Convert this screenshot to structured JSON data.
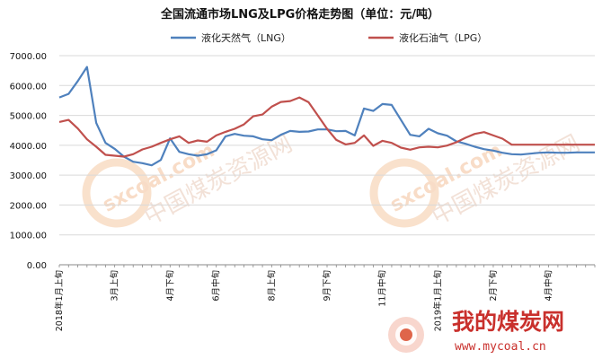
{
  "chart_data": {
    "type": "line",
    "title": "全国流通市场LNG及LPG价格走势图（单位：元/吨）",
    "ylim": [
      0,
      7000
    ],
    "yticks": [
      "0.00",
      "1000.00",
      "2000.00",
      "3000.00",
      "4000.00",
      "5000.00",
      "6000.00",
      "7000.00"
    ],
    "grid": "horizontal",
    "legend_position": "top",
    "x_tick_labels": [
      {
        "index": 0,
        "label": "2018年1月上旬"
      },
      {
        "index": 6,
        "label": "3月上旬"
      },
      {
        "index": 12,
        "label": "4月下旬"
      },
      {
        "index": 17,
        "label": "6月中旬"
      },
      {
        "index": 23,
        "label": "8月上旬"
      },
      {
        "index": 29,
        "label": "9月下旬"
      },
      {
        "index": 35,
        "label": "11月中旬"
      },
      {
        "index": 41,
        "label": "2019年1月上旬"
      },
      {
        "index": 47,
        "label": "2月下旬"
      },
      {
        "index": 53,
        "label": "4月中旬"
      }
    ],
    "n_points": 59,
    "series": [
      {
        "name": "液化天然气（LNG）",
        "color": "#4F81BD",
        "values": [
          5600,
          5720,
          6150,
          6620,
          4750,
          4080,
          3880,
          3620,
          3450,
          3400,
          3330,
          3510,
          4230,
          3780,
          3700,
          3650,
          3700,
          3830,
          4300,
          4380,
          4320,
          4300,
          4200,
          4170,
          4350,
          4480,
          4450,
          4460,
          4530,
          4530,
          4470,
          4480,
          4330,
          5230,
          5150,
          5380,
          5350,
          4850,
          4350,
          4300,
          4550,
          4400,
          4320,
          4130,
          4050,
          3950,
          3870,
          3820,
          3750,
          3700,
          3690,
          3720,
          3750,
          3760,
          3750,
          3750,
          3760,
          3760,
          3760
        ]
      },
      {
        "name": "液化石油气（LPG）",
        "color": "#C0504D",
        "values": [
          4780,
          4850,
          4560,
          4200,
          3950,
          3680,
          3650,
          3620,
          3700,
          3860,
          3950,
          4080,
          4200,
          4300,
          4080,
          4160,
          4120,
          4330,
          4450,
          4550,
          4700,
          4970,
          5030,
          5290,
          5450,
          5480,
          5600,
          5440,
          5000,
          4550,
          4180,
          4030,
          4080,
          4330,
          3980,
          4150,
          4080,
          3920,
          3850,
          3930,
          3950,
          3930,
          3990,
          4100,
          4250,
          4380,
          4440,
          4330,
          4220,
          4020,
          4020,
          4020,
          4020,
          4020,
          4020,
          4020,
          4020,
          4020,
          4020
        ]
      }
    ]
  },
  "watermark": {
    "site": "sxcoal.com",
    "cn": "中国煤炭资源网"
  },
  "brand": {
    "cn": "我的煤炭网",
    "url": "www.mycoal.cn"
  }
}
